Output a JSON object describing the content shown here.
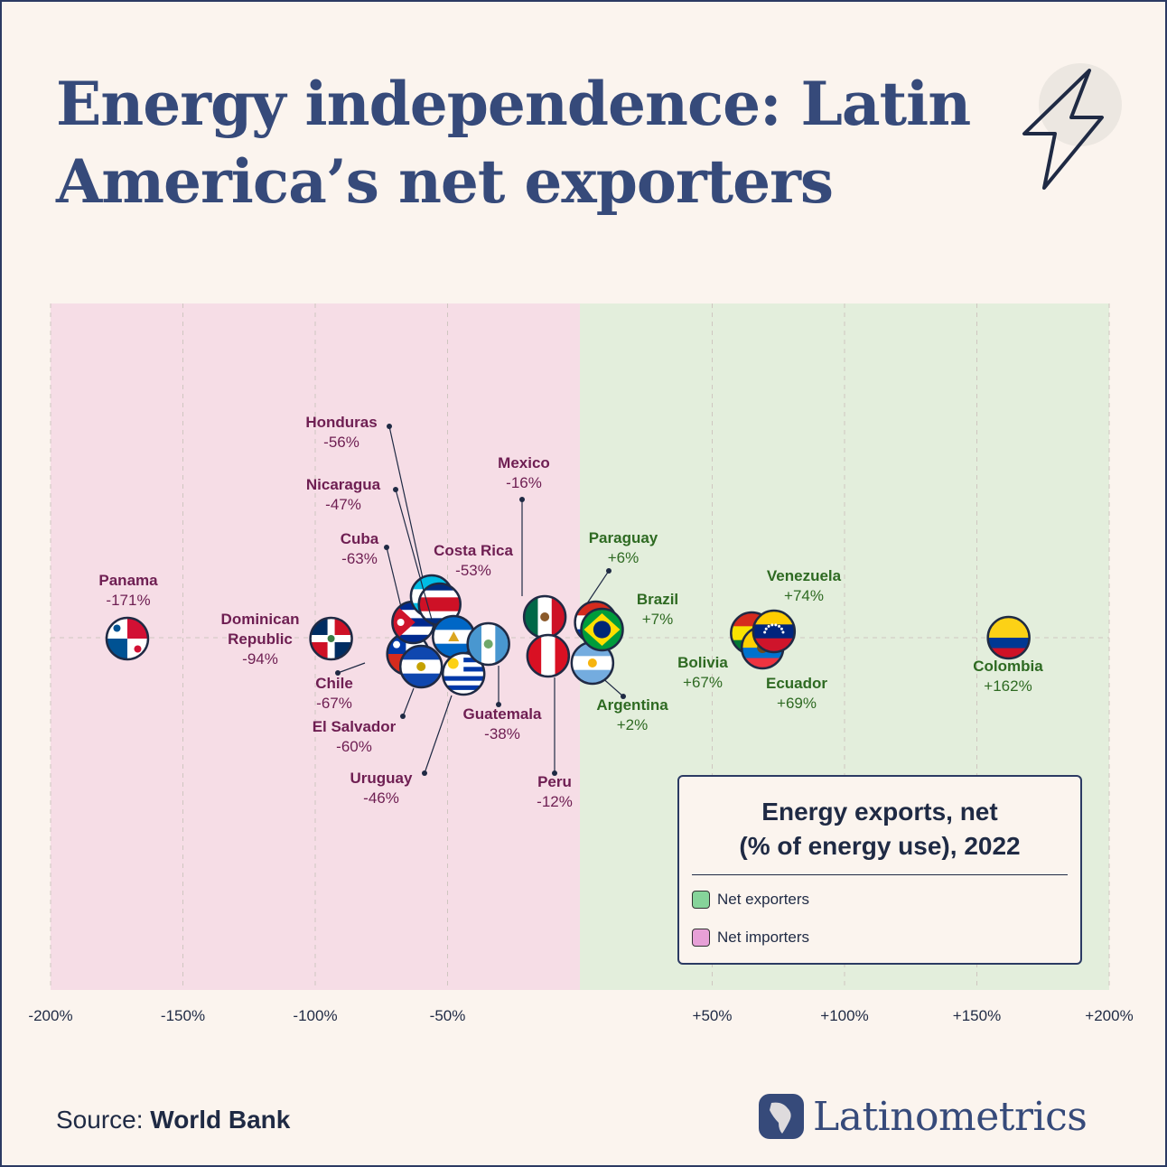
{
  "title": "Energy independence: Latin America’s net exporters",
  "source": {
    "prefix": "Source:",
    "name": "World Bank"
  },
  "brand": {
    "name": "Latinometrics",
    "icon": "latin-america-map-icon"
  },
  "header_icon": "lightning-bolt-icon",
  "colors": {
    "background": "#FBF4EE",
    "importer_band": "#F6DDE6",
    "exporter_band": "#E3EEDC",
    "importer_text": "#6E1E52",
    "exporter_text": "#2E6A22",
    "title": "#364A7A"
  },
  "chart_data": {
    "type": "scatter",
    "title": "Energy exports, net",
    "subtitle": "(% of energy use), 2022",
    "xlim": [
      -200,
      200
    ],
    "x_ticks": [
      {
        "value": -200,
        "label": "-200%"
      },
      {
        "value": -150,
        "label": "-150%"
      },
      {
        "value": -100,
        "label": "-100%"
      },
      {
        "value": -50,
        "label": "-50%"
      },
      {
        "value": 50,
        "label": "+50%"
      },
      {
        "value": 100,
        "label": "+100%"
      },
      {
        "value": 150,
        "label": "+150%"
      },
      {
        "value": 200,
        "label": "+200%"
      }
    ],
    "grid": true,
    "legend": {
      "placement": "bottom-right",
      "entries": [
        {
          "label": "Net exporters",
          "color": "#86D49A"
        },
        {
          "label": "Net importers",
          "color": "#E7A0D7"
        }
      ]
    },
    "points": [
      {
        "country": "Panama",
        "value": -171,
        "label": "-171%",
        "group": "importer",
        "flag": "panama"
      },
      {
        "country": "Dominican Republic",
        "value": -94,
        "label": "-94%",
        "group": "importer",
        "flag": "dominican-republic"
      },
      {
        "country": "Chile",
        "value": -67,
        "label": "-67%",
        "group": "importer",
        "flag": "chile"
      },
      {
        "country": "Cuba",
        "value": -63,
        "label": "-63%",
        "group": "importer",
        "flag": "cuba"
      },
      {
        "country": "El Salvador",
        "value": -60,
        "label": "-60%",
        "group": "importer",
        "flag": "el-salvador"
      },
      {
        "country": "Honduras",
        "value": -56,
        "label": "-56%",
        "group": "importer",
        "flag": "honduras"
      },
      {
        "country": "Costa Rica",
        "value": -53,
        "label": "-53%",
        "group": "importer",
        "flag": "costa-rica"
      },
      {
        "country": "Nicaragua",
        "value": -47,
        "label": "-47%",
        "group": "importer",
        "flag": "nicaragua"
      },
      {
        "country": "Uruguay",
        "value": -46,
        "label": "-46%",
        "group": "importer",
        "flag": "uruguay"
      },
      {
        "country": "Guatemala",
        "value": -38,
        "label": "-38%",
        "group": "importer",
        "flag": "guatemala"
      },
      {
        "country": "Mexico",
        "value": -16,
        "label": "-16%",
        "group": "importer",
        "flag": "mexico"
      },
      {
        "country": "Peru",
        "value": -12,
        "label": "-12%",
        "group": "importer",
        "flag": "peru"
      },
      {
        "country": "Argentina",
        "value": 2,
        "label": "+2%",
        "group": "exporter",
        "flag": "argentina"
      },
      {
        "country": "Paraguay",
        "value": 6,
        "label": "+6%",
        "group": "exporter",
        "flag": "paraguay"
      },
      {
        "country": "Brazil",
        "value": 7,
        "label": "+7%",
        "group": "exporter",
        "flag": "brazil"
      },
      {
        "country": "Bolivia",
        "value": 67,
        "label": "+67%",
        "group": "exporter",
        "flag": "bolivia"
      },
      {
        "country": "Ecuador",
        "value": 69,
        "label": "+69%",
        "group": "exporter",
        "flag": "ecuador"
      },
      {
        "country": "Venezuela",
        "value": 74,
        "label": "+74%",
        "group": "exporter",
        "flag": "venezuela"
      },
      {
        "country": "Colombia",
        "value": 162,
        "label": "+162%",
        "group": "exporter",
        "flag": "colombia"
      }
    ]
  }
}
